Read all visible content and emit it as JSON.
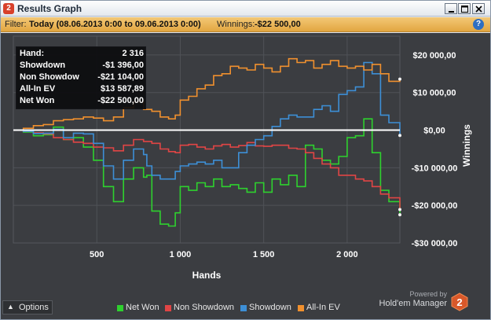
{
  "window": {
    "title": "Results Graph",
    "logo_text": "2"
  },
  "filter": {
    "label": "Filter:",
    "value": "Today (08.06.2013 0:00 to 09.06.2013 0:00)",
    "winnings_label": "Winnings:",
    "winnings_value": "-$22 500,00",
    "help": "?"
  },
  "stats": [
    {
      "label": "Hand:",
      "value": "2 316"
    },
    {
      "label": "Showdown",
      "value": "-$1 396,00"
    },
    {
      "label": "Non Showdow",
      "value": "-$21 104,00"
    },
    {
      "label": "All-In EV",
      "value": "$13 587,89"
    },
    {
      "label": "Net Won",
      "value": "-$22 500,00"
    }
  ],
  "footer": {
    "options_label": "Options",
    "powered_by": "Powered by",
    "brand": "Hold'em Manager",
    "brand_badge": "2"
  },
  "colors": {
    "net_won": "#2ed12e",
    "non_showdown": "#e04545",
    "showdown": "#3d8fd6",
    "all_in_ev": "#f0902e",
    "zero_line": "#ffffff"
  },
  "icons": [
    "app-logo-icon",
    "minimize-icon",
    "maximize-icon",
    "close-icon",
    "help-icon",
    "chevron-up-icon",
    "holdem-manager-logo-icon"
  ],
  "chart_data": {
    "type": "line",
    "xlabel": "Hands",
    "ylabel": "Winnings",
    "xlim": [
      0,
      2316
    ],
    "ylim": [
      -30000,
      25000
    ],
    "x_ticks": [
      500,
      1000,
      1500,
      2000
    ],
    "x_tick_labels": [
      "500",
      "1 000",
      "1 500",
      "2 000"
    ],
    "y_ticks": [
      20000,
      10000,
      0,
      -10000,
      -20000,
      -30000
    ],
    "y_tick_labels": [
      "$20 000,00",
      "$10 000,00",
      "$0,00",
      "-$10 000,00",
      "-$20 000,00",
      "-$30 000,00"
    ],
    "grid": true,
    "legend_position": "bottom",
    "series": [
      {
        "name": "Net Won",
        "x": [
          0,
          60,
          120,
          180,
          240,
          300,
          360,
          420,
          480,
          540,
          600,
          660,
          720,
          780,
          800,
          830,
          880,
          930,
          970,
          1000,
          1050,
          1100,
          1150,
          1200,
          1250,
          1300,
          1350,
          1400,
          1450,
          1500,
          1550,
          1600,
          1650,
          1700,
          1750,
          1800,
          1850,
          1900,
          1950,
          2000,
          2050,
          2100,
          2150,
          2200,
          2250,
          2316
        ],
        "y": [
          0,
          -500,
          -1500,
          -1200,
          800,
          -2500,
          -2000,
          -4500,
          -8000,
          -15000,
          -19000,
          -13000,
          -10000,
          -12500,
          -12000,
          -21500,
          -25000,
          -25500,
          -22000,
          -15000,
          -16000,
          -14000,
          -15000,
          -13000,
          -15000,
          -14500,
          -15500,
          -16500,
          -14000,
          -16500,
          -13000,
          -14500,
          -12000,
          -15000,
          -4000,
          -5000,
          -8000,
          -9000,
          -7000,
          -2000,
          -1500,
          3000,
          -6000,
          -16000,
          -19000,
          -22500
        ]
      },
      {
        "name": "Non Showdown",
        "x": [
          0,
          60,
          120,
          180,
          240,
          300,
          360,
          420,
          480,
          540,
          600,
          660,
          720,
          780,
          830,
          880,
          930,
          970,
          1000,
          1050,
          1100,
          1150,
          1200,
          1250,
          1300,
          1350,
          1400,
          1450,
          1500,
          1550,
          1600,
          1650,
          1700,
          1750,
          1800,
          1850,
          1900,
          1950,
          2000,
          2050,
          2100,
          2150,
          2200,
          2250,
          2316
        ],
        "y": [
          0,
          -300,
          -700,
          -1000,
          -2000,
          -2500,
          -3200,
          -3500,
          -4500,
          -4700,
          -5500,
          -4000,
          -2500,
          -3000,
          -3500,
          -5000,
          -5700,
          -6000,
          -4000,
          -3800,
          -4500,
          -5000,
          -4200,
          -3800,
          -4500,
          -4100,
          -3300,
          -4200,
          -4300,
          -4000,
          -4000,
          -4800,
          -5000,
          -6000,
          -7500,
          -9000,
          -10000,
          -12000,
          -12000,
          -13000,
          -13500,
          -15000,
          -17000,
          -18000,
          -21104
        ]
      },
      {
        "name": "Showdown",
        "x": [
          0,
          60,
          120,
          180,
          240,
          300,
          360,
          420,
          480,
          540,
          600,
          660,
          720,
          780,
          800,
          830,
          880,
          930,
          970,
          1000,
          1050,
          1100,
          1150,
          1200,
          1250,
          1300,
          1350,
          1400,
          1450,
          1500,
          1550,
          1600,
          1650,
          1700,
          1750,
          1800,
          1850,
          1900,
          1950,
          2000,
          2050,
          2100,
          2150,
          2200,
          2250,
          2316
        ],
        "y": [
          0,
          -300,
          -900,
          -800,
          200,
          -2000,
          -800,
          -1000,
          -3500,
          -9500,
          -13000,
          -8000,
          -5000,
          -6500,
          -9500,
          -12000,
          -13000,
          -13000,
          -11000,
          -9500,
          -9000,
          -8500,
          -9000,
          -8000,
          -10000,
          -10000,
          -6000,
          -4000,
          -2500,
          -1500,
          1000,
          3000,
          4000,
          3500,
          3500,
          5500,
          6500,
          5000,
          9500,
          10500,
          11500,
          18000,
          15000,
          4000,
          2000,
          -1396
        ]
      },
      {
        "name": "All-In EV",
        "x": [
          0,
          60,
          120,
          180,
          240,
          300,
          360,
          420,
          480,
          540,
          600,
          660,
          720,
          780,
          830,
          880,
          930,
          970,
          1000,
          1050,
          1100,
          1150,
          1200,
          1250,
          1300,
          1350,
          1400,
          1450,
          1500,
          1550,
          1600,
          1650,
          1700,
          1750,
          1800,
          1850,
          1900,
          1950,
          2000,
          2050,
          2100,
          2150,
          2200,
          2250,
          2316
        ],
        "y": [
          0,
          500,
          1200,
          1500,
          2500,
          2800,
          3000,
          3500,
          3200,
          2500,
          3500,
          6000,
          7500,
          5500,
          5000,
          3500,
          3000,
          4000,
          8000,
          9000,
          11000,
          12000,
          14500,
          15000,
          17000,
          16500,
          16000,
          17500,
          16500,
          15500,
          17000,
          19000,
          18000,
          18500,
          16500,
          17500,
          18500,
          17000,
          16500,
          17000,
          16000,
          17500,
          15000,
          13000,
          13588
        ]
      }
    ]
  }
}
